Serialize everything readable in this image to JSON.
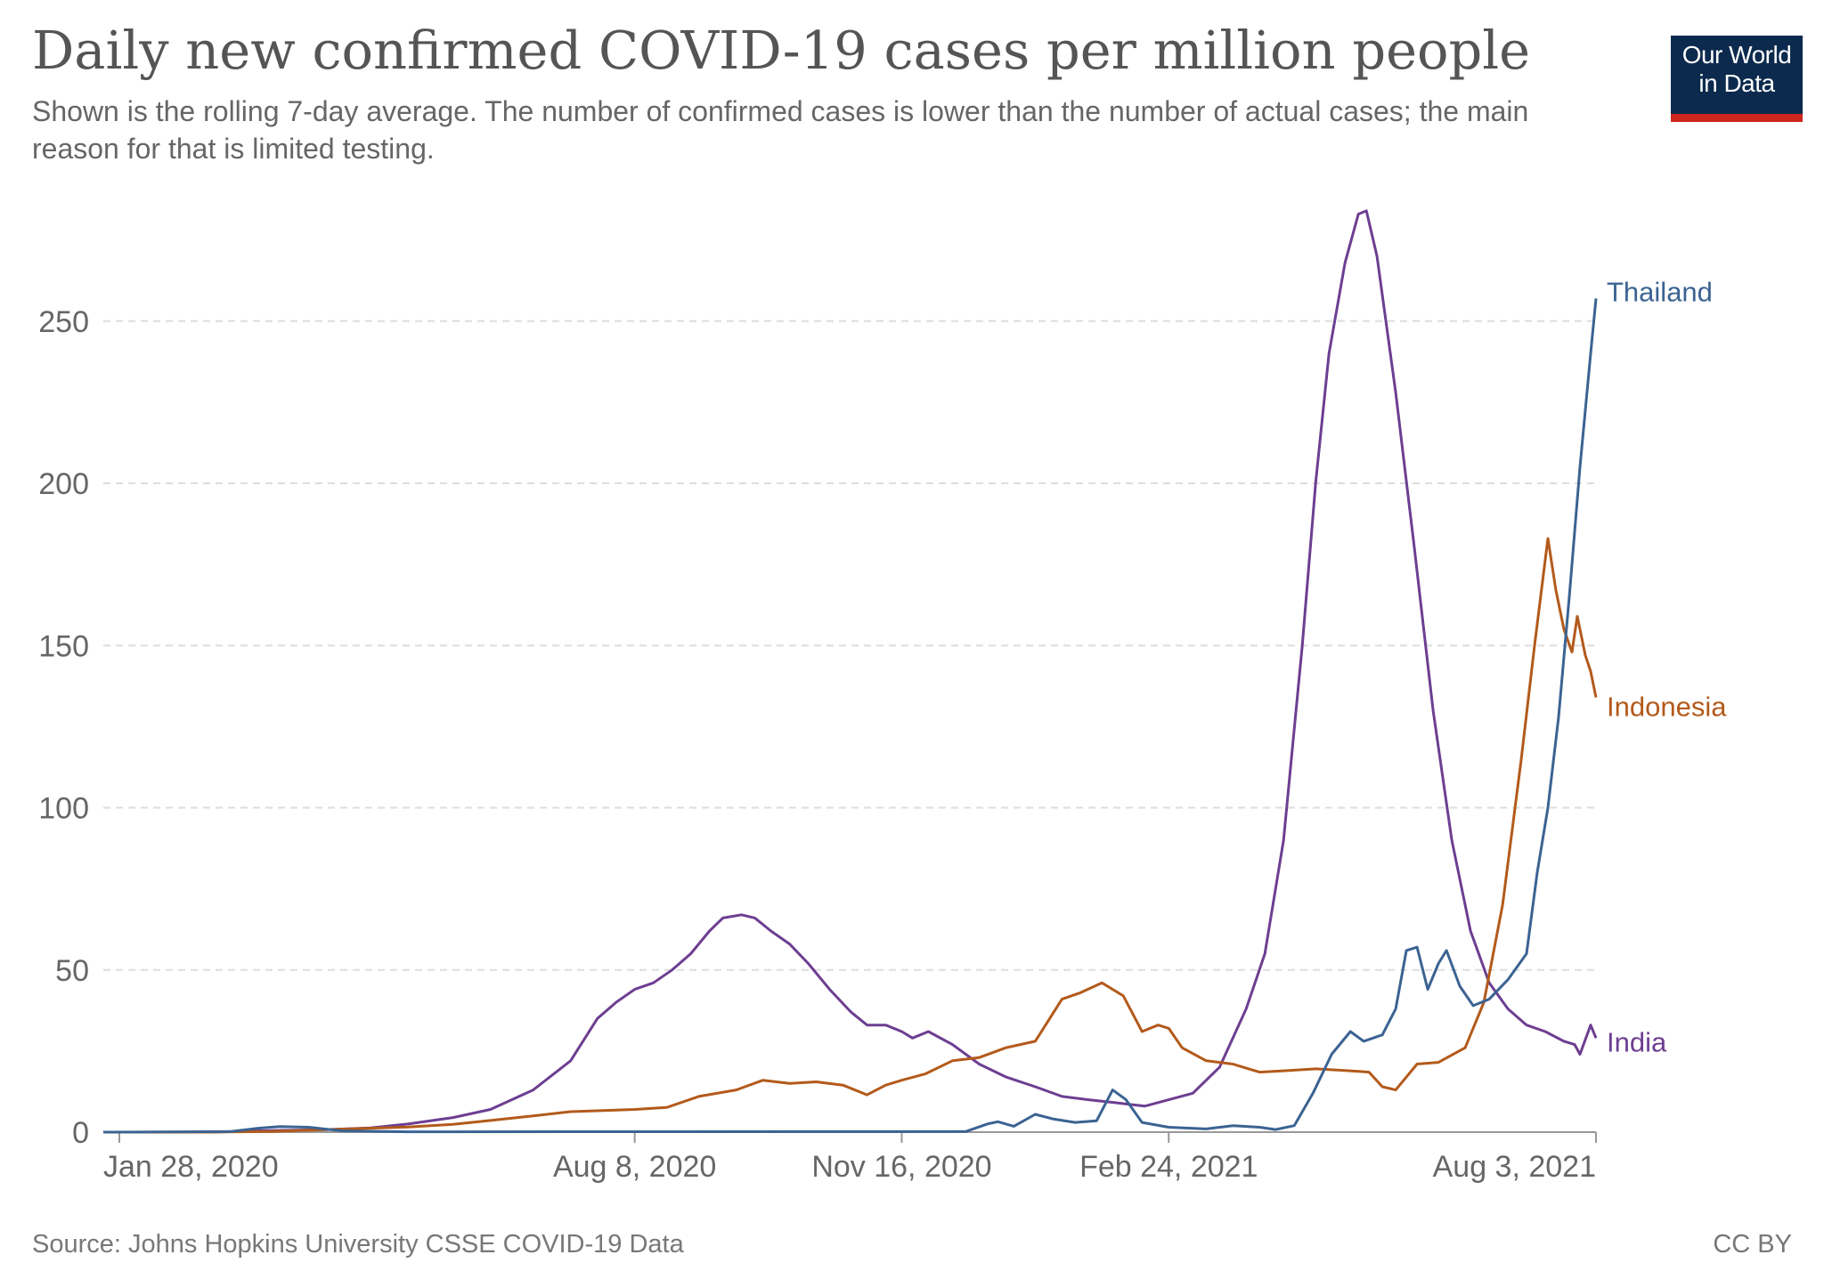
{
  "header": {
    "title": "Daily new confirmed COVID-19 cases per million people",
    "subtitle": "Shown is the rolling 7-day average. The number of confirmed cases is lower than the number of actual cases; the main reason for that is limited testing.",
    "logo_line1": "Our World",
    "logo_line2": "in Data"
  },
  "footer": {
    "source": "Source: Johns Hopkins University CSSE COVID-19 Data",
    "license": "CC BY"
  },
  "chart_data": {
    "type": "line",
    "title": "Daily new confirmed COVID-19 cases per million people",
    "subtitle": "Shown is the rolling 7-day average. The number of confirmed cases is lower than the number of actual cases; the main reason for that is limited testing.",
    "xlabel": "",
    "ylabel": "",
    "xlim": [
      "2020-01-22",
      "2021-08-03"
    ],
    "ylim": [
      0,
      290
    ],
    "grid": "horizontal dashed",
    "legend": "inline labels at line ends",
    "x_ticks": [
      {
        "date": "2020-01-28",
        "label": "Jan 28, 2020"
      },
      {
        "date": "2020-08-08",
        "label": "Aug 8, 2020"
      },
      {
        "date": "2020-11-16",
        "label": "Nov 16, 2020"
      },
      {
        "date": "2021-02-24",
        "label": "Feb 24, 2021"
      },
      {
        "date": "2021-08-03",
        "label": "Aug 3, 2021"
      }
    ],
    "y_ticks": [
      0,
      50,
      100,
      150,
      200,
      250
    ],
    "series": [
      {
        "name": "India",
        "color": "#6d3e91",
        "points": [
          [
            "2020-01-22",
            0
          ],
          [
            "2020-03-01",
            0
          ],
          [
            "2020-03-25",
            0.5
          ],
          [
            "2020-04-15",
            0.8
          ],
          [
            "2020-05-01",
            1.3
          ],
          [
            "2020-05-15",
            2.5
          ],
          [
            "2020-06-01",
            4.5
          ],
          [
            "2020-06-15",
            7
          ],
          [
            "2020-07-01",
            13
          ],
          [
            "2020-07-15",
            22
          ],
          [
            "2020-07-25",
            35
          ],
          [
            "2020-08-01",
            40
          ],
          [
            "2020-08-08",
            44
          ],
          [
            "2020-08-15",
            46
          ],
          [
            "2020-08-22",
            50
          ],
          [
            "2020-08-29",
            55
          ],
          [
            "2020-09-05",
            62
          ],
          [
            "2020-09-10",
            66
          ],
          [
            "2020-09-17",
            67
          ],
          [
            "2020-09-22",
            66
          ],
          [
            "2020-09-28",
            62
          ],
          [
            "2020-10-05",
            58
          ],
          [
            "2020-10-12",
            52
          ],
          [
            "2020-10-20",
            44
          ],
          [
            "2020-10-28",
            37
          ],
          [
            "2020-11-03",
            33
          ],
          [
            "2020-11-10",
            33
          ],
          [
            "2020-11-16",
            31
          ],
          [
            "2020-11-20",
            29
          ],
          [
            "2020-11-26",
            31
          ],
          [
            "2020-12-05",
            27
          ],
          [
            "2020-12-15",
            21
          ],
          [
            "2020-12-25",
            17
          ],
          [
            "2021-01-05",
            14
          ],
          [
            "2021-01-15",
            11
          ],
          [
            "2021-01-25",
            10
          ],
          [
            "2021-02-05",
            9
          ],
          [
            "2021-02-15",
            8
          ],
          [
            "2021-02-24",
            10
          ],
          [
            "2021-03-05",
            12
          ],
          [
            "2021-03-15",
            20
          ],
          [
            "2021-03-25",
            38
          ],
          [
            "2021-04-01",
            55
          ],
          [
            "2021-04-08",
            90
          ],
          [
            "2021-04-15",
            150
          ],
          [
            "2021-04-20",
            200
          ],
          [
            "2021-04-25",
            240
          ],
          [
            "2021-05-01",
            268
          ],
          [
            "2021-05-06",
            283
          ],
          [
            "2021-05-09",
            284
          ],
          [
            "2021-05-13",
            270
          ],
          [
            "2021-05-20",
            228
          ],
          [
            "2021-05-27",
            180
          ],
          [
            "2021-06-03",
            130
          ],
          [
            "2021-06-10",
            90
          ],
          [
            "2021-06-17",
            62
          ],
          [
            "2021-06-24",
            46
          ],
          [
            "2021-07-01",
            38
          ],
          [
            "2021-07-08",
            33
          ],
          [
            "2021-07-15",
            31
          ],
          [
            "2021-07-22",
            28
          ],
          [
            "2021-07-26",
            27
          ],
          [
            "2021-07-28",
            24
          ],
          [
            "2021-08-01",
            33
          ],
          [
            "2021-08-03",
            29
          ]
        ]
      },
      {
        "name": "Indonesia",
        "color": "#b35a1b",
        "points": [
          [
            "2020-01-22",
            0
          ],
          [
            "2020-03-01",
            0
          ],
          [
            "2020-03-25",
            0.2
          ],
          [
            "2020-04-15",
            0.8
          ],
          [
            "2020-05-01",
            1.2
          ],
          [
            "2020-05-15",
            1.6
          ],
          [
            "2020-06-01",
            2.4
          ],
          [
            "2020-06-15",
            3.6
          ],
          [
            "2020-07-01",
            5
          ],
          [
            "2020-07-15",
            6.3
          ],
          [
            "2020-08-01",
            6.8
          ],
          [
            "2020-08-08",
            7
          ],
          [
            "2020-08-20",
            7.6
          ],
          [
            "2020-09-01",
            11
          ],
          [
            "2020-09-15",
            13
          ],
          [
            "2020-09-25",
            16
          ],
          [
            "2020-10-05",
            15
          ],
          [
            "2020-10-15",
            15.5
          ],
          [
            "2020-10-25",
            14.5
          ],
          [
            "2020-11-03",
            11.5
          ],
          [
            "2020-11-10",
            14.5
          ],
          [
            "2020-11-16",
            16
          ],
          [
            "2020-11-25",
            18
          ],
          [
            "2020-12-05",
            22
          ],
          [
            "2020-12-15",
            23
          ],
          [
            "2020-12-25",
            26
          ],
          [
            "2021-01-05",
            28
          ],
          [
            "2021-01-15",
            41
          ],
          [
            "2021-01-22",
            43
          ],
          [
            "2021-01-30",
            46
          ],
          [
            "2021-02-07",
            42
          ],
          [
            "2021-02-14",
            31
          ],
          [
            "2021-02-20",
            33
          ],
          [
            "2021-02-24",
            32
          ],
          [
            "2021-03-01",
            26
          ],
          [
            "2021-03-10",
            22
          ],
          [
            "2021-03-20",
            21
          ],
          [
            "2021-03-30",
            18.5
          ],
          [
            "2021-04-10",
            19
          ],
          [
            "2021-04-20",
            19.5
          ],
          [
            "2021-05-01",
            19
          ],
          [
            "2021-05-10",
            18.5
          ],
          [
            "2021-05-15",
            14
          ],
          [
            "2021-05-20",
            13
          ],
          [
            "2021-05-28",
            21
          ],
          [
            "2021-06-05",
            21.5
          ],
          [
            "2021-06-15",
            26
          ],
          [
            "2021-06-22",
            40
          ],
          [
            "2021-06-29",
            70
          ],
          [
            "2021-07-06",
            115
          ],
          [
            "2021-07-11",
            150
          ],
          [
            "2021-07-16",
            183
          ],
          [
            "2021-07-19",
            167
          ],
          [
            "2021-07-22",
            155
          ],
          [
            "2021-07-25",
            148
          ],
          [
            "2021-07-27",
            159
          ],
          [
            "2021-07-30",
            147
          ],
          [
            "2021-08-01",
            142
          ],
          [
            "2021-08-03",
            134
          ]
        ]
      },
      {
        "name": "Thailand",
        "color": "#3b6392",
        "points": [
          [
            "2020-01-22",
            0
          ],
          [
            "2020-03-10",
            0.2
          ],
          [
            "2020-03-20",
            1.2
          ],
          [
            "2020-03-28",
            1.7
          ],
          [
            "2020-04-08",
            1.5
          ],
          [
            "2020-04-20",
            0.4
          ],
          [
            "2020-05-15",
            0.1
          ],
          [
            "2020-12-10",
            0.2
          ],
          [
            "2020-12-18",
            2.5
          ],
          [
            "2020-12-22",
            3.2
          ],
          [
            "2020-12-28",
            1.8
          ],
          [
            "2021-01-05",
            5.5
          ],
          [
            "2021-01-12",
            4
          ],
          [
            "2021-01-20",
            3
          ],
          [
            "2021-01-28",
            3.5
          ],
          [
            "2021-02-03",
            13
          ],
          [
            "2021-02-08",
            10
          ],
          [
            "2021-02-14",
            3
          ],
          [
            "2021-02-24",
            1.5
          ],
          [
            "2021-03-10",
            1
          ],
          [
            "2021-03-20",
            2
          ],
          [
            "2021-03-30",
            1.5
          ],
          [
            "2021-04-05",
            0.8
          ],
          [
            "2021-04-12",
            2
          ],
          [
            "2021-04-19",
            12
          ],
          [
            "2021-04-26",
            24
          ],
          [
            "2021-05-03",
            31
          ],
          [
            "2021-05-08",
            28
          ],
          [
            "2021-05-15",
            30
          ],
          [
            "2021-05-20",
            38
          ],
          [
            "2021-05-24",
            56
          ],
          [
            "2021-05-28",
            57
          ],
          [
            "2021-06-01",
            44
          ],
          [
            "2021-06-05",
            52
          ],
          [
            "2021-06-08",
            56
          ],
          [
            "2021-06-13",
            45
          ],
          [
            "2021-06-18",
            39
          ],
          [
            "2021-06-24",
            41
          ],
          [
            "2021-07-01",
            47
          ],
          [
            "2021-07-08",
            55
          ],
          [
            "2021-07-12",
            80
          ],
          [
            "2021-07-16",
            100
          ],
          [
            "2021-07-20",
            128
          ],
          [
            "2021-07-24",
            165
          ],
          [
            "2021-07-28",
            205
          ],
          [
            "2021-08-01",
            240
          ],
          [
            "2021-08-03",
            257
          ]
        ]
      }
    ]
  }
}
